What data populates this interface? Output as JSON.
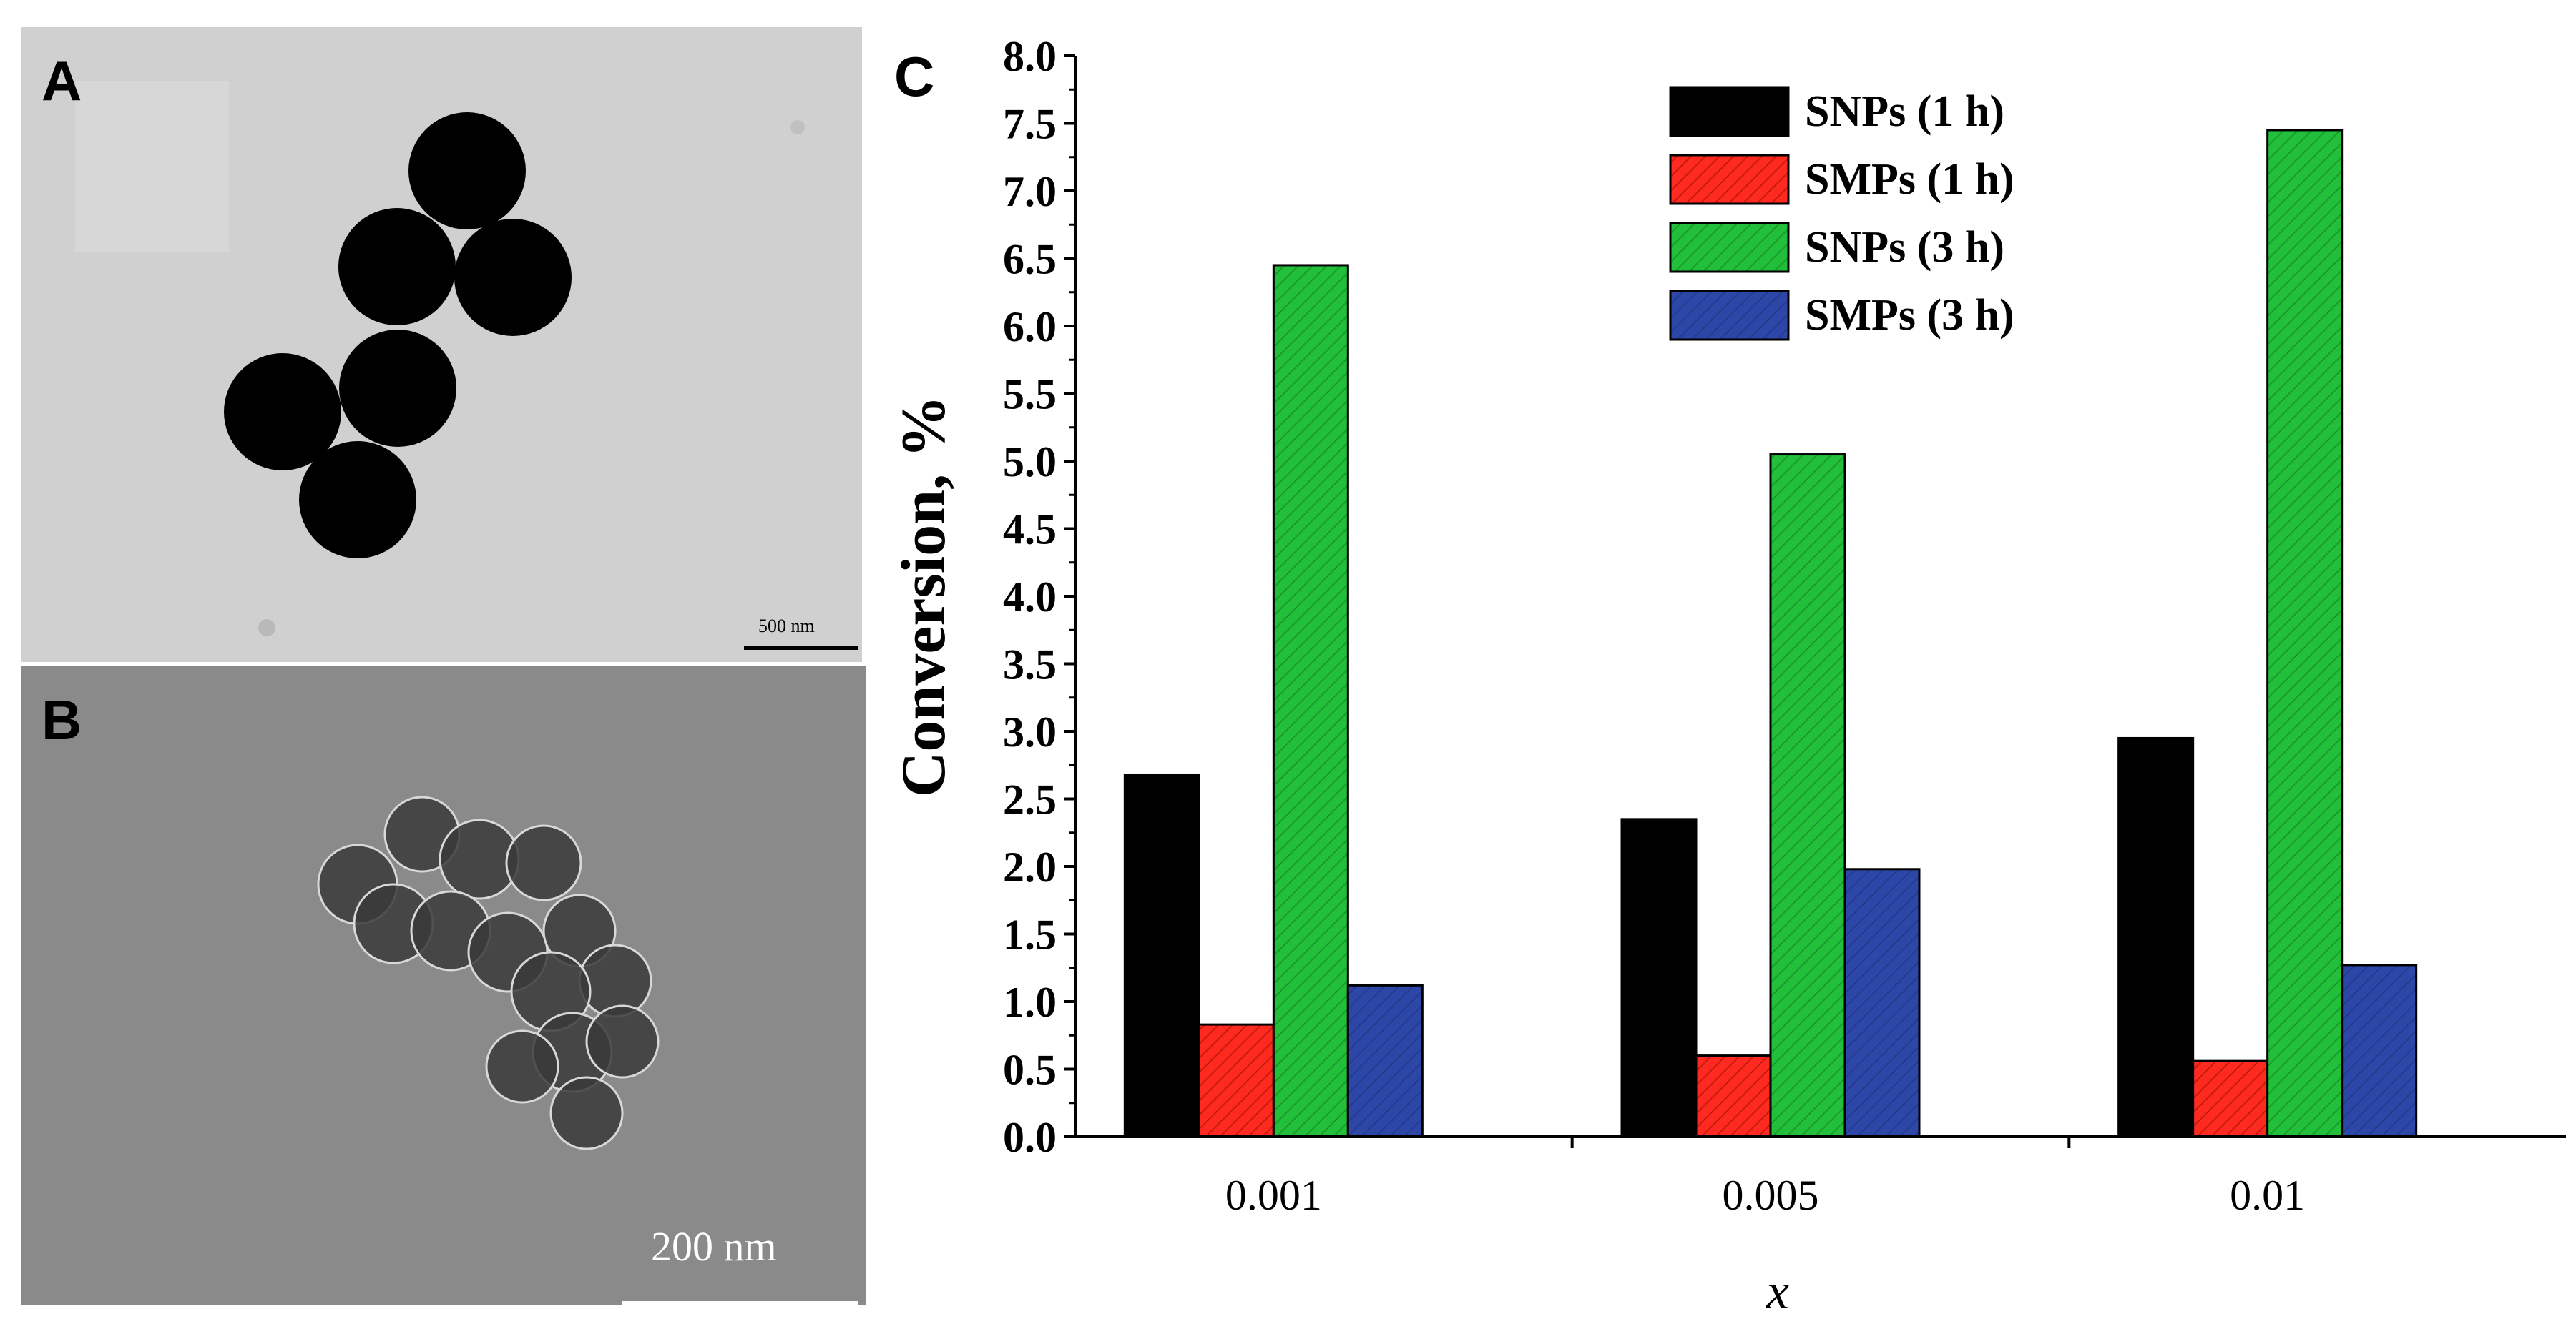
{
  "panels": {
    "a": {
      "label": "A",
      "scale_bar": "500 nm"
    },
    "b": {
      "label": "B",
      "scale_bar": "200 nm"
    },
    "c": {
      "label": "C"
    }
  },
  "colors": {
    "snps_1h": "#000000",
    "smps_1h": "#ff2a1f",
    "snps_3h": "#22c03a",
    "smps_3h": "#2d47a8"
  },
  "chart_data": {
    "type": "bar",
    "title": "",
    "xlabel": "x",
    "ylabel": "Conversion, %",
    "categories": [
      "0.001",
      "0.005",
      "0.01"
    ],
    "ylim": [
      0,
      8
    ],
    "yticks": [
      "0.0",
      "0.5",
      "1.0",
      "1.5",
      "2.0",
      "2.5",
      "3.0",
      "3.5",
      "4.0",
      "4.5",
      "5.0",
      "5.5",
      "6.0",
      "6.5",
      "7.0",
      "7.5",
      "8.0"
    ],
    "legend_position": "top-center",
    "grid": false,
    "series": [
      {
        "name": "SNPs (1 h)",
        "values": [
          2.68,
          2.35,
          2.95
        ],
        "pattern": "solid"
      },
      {
        "name": "SMPs (1 h)",
        "values": [
          0.83,
          0.6,
          0.56
        ],
        "pattern": "hatched"
      },
      {
        "name": "SNPs (3 h)",
        "values": [
          6.45,
          5.05,
          7.45
        ],
        "pattern": "hatched"
      },
      {
        "name": "SMPs (3 h)",
        "values": [
          1.12,
          1.98,
          1.27
        ],
        "pattern": "hatched"
      }
    ]
  }
}
